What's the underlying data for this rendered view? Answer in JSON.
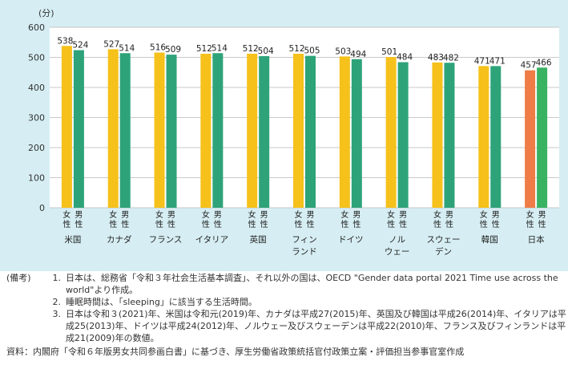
{
  "chart_data": {
    "type": "bar",
    "y_unit": "(分)",
    "ylim": [
      0,
      600
    ],
    "yticks": [
      0,
      100,
      200,
      300,
      400,
      500,
      600
    ],
    "grid": true,
    "group_labels": [
      "女性",
      "男性"
    ],
    "categories": [
      {
        "name": "米国",
        "female": 538,
        "male": 524
      },
      {
        "name": "カナダ",
        "female": 527,
        "male": 514
      },
      {
        "name": "フランス",
        "female": 516,
        "male": 509
      },
      {
        "name": "イタリア",
        "female": 512,
        "male": 514
      },
      {
        "name": "英国",
        "female": 512,
        "male": 504
      },
      {
        "name": "フィン\nランド",
        "female": 512,
        "male": 505
      },
      {
        "name": "ドイツ",
        "female": 503,
        "male": 494
      },
      {
        "name": "ノル\nウェー",
        "female": 501,
        "male": 484
      },
      {
        "name": "スウェー\nデン",
        "female": 483,
        "male": 482
      },
      {
        "name": "韓国",
        "female": 471,
        "male": 471
      },
      {
        "name": "日本",
        "female": 457,
        "male": 466
      }
    ],
    "colors": {
      "female": "#f5c11a",
      "male": "#2ea37a",
      "japan_female": "#ef7c46",
      "japan_male": "#39b261"
    }
  },
  "notes": {
    "label": "(備考)",
    "items": [
      {
        "num": "1.",
        "text": "日本は、総務省「令和３年社会生活基本調査」、それ以外の国は、OECD \"Gender data portal 2021 Time use across the world\"より作成。"
      },
      {
        "num": "2.",
        "text": "睡眠時間は、「sleeping」に該当する生活時間。"
      },
      {
        "num": "3.",
        "text": "日本は令和３(2021)年、米国は令和元(2019)年、カナダは平成27(2015)年、英国及び韓国は平成26(2014)年、イタリアは平成25(2013)年、ドイツは平成24(2012)年、ノルウェー及びスウェーデンは平成22(2010)年、フランス及びフィンランドは平成21(2009)年の数値。"
      }
    ],
    "source": "資料：内閣府「令和６年版男女共同参画白書」に基づき、厚生労働省政策統括官付政策立案・評価担当参事官室作成"
  }
}
